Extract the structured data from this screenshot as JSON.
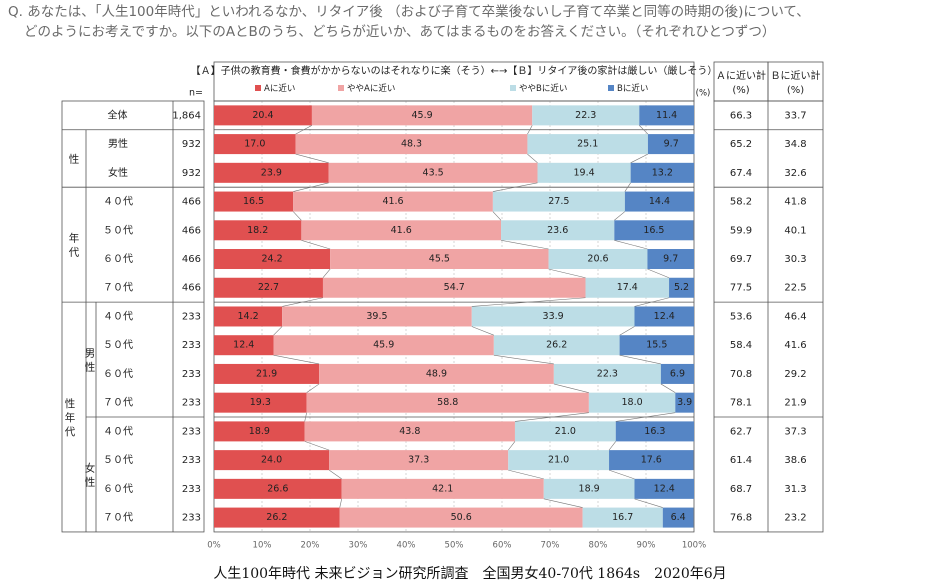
{
  "question": {
    "line1": "Q. あなたは、「人生100年時代」といわれるなか、リタイア後 （および子育て卒業後ないし子育て卒業と同等の時期の後)について、",
    "line2": "どのようにお考えですか。以下のAとBのうち、どちらが近いか、あてはまるものをお答えください。（それぞれひとつずつ）"
  },
  "footer": "人生100年時代 未来ビジョン研究所調査　全国男女40-70代 1864s　2020年6月",
  "colors": {
    "a": "#e05050",
    "somewhat_a": "#f0a4a4",
    "somewhat_b": "#bcdde6",
    "b": "#5585c5"
  },
  "chart_data": {
    "type": "bar",
    "orientation": "horizontal",
    "stacked": "percent",
    "title": "【Ａ】子供の教育費・食費がかからないのはそれなりに楽（そう）←→【Ｂ】リタイア後の家計は厳しい（厳しそう）",
    "n_header": "n=",
    "unit_label": "(%)",
    "series": [
      {
        "name": "Aに近い",
        "key": "a",
        "values": [
          20.4,
          17.0,
          23.9,
          16.5,
          18.2,
          24.2,
          22.7,
          14.2,
          12.4,
          21.9,
          19.3,
          18.9,
          24.0,
          26.6,
          26.2
        ]
      },
      {
        "name": "ややAに近い",
        "key": "somewhat_a",
        "values": [
          45.9,
          48.3,
          43.5,
          41.6,
          41.6,
          45.5,
          54.7,
          39.5,
          45.9,
          48.9,
          58.8,
          43.8,
          37.3,
          42.1,
          50.6
        ]
      },
      {
        "name": "ややBに近い",
        "key": "somewhat_b",
        "values": [
          22.3,
          25.1,
          19.4,
          27.5,
          23.6,
          20.6,
          17.4,
          33.9,
          26.2,
          22.3,
          18.0,
          21.0,
          21.0,
          18.9,
          16.7
        ]
      },
      {
        "name": "Bに近い",
        "key": "b",
        "values": [
          11.4,
          9.7,
          13.2,
          14.4,
          16.5,
          9.7,
          5.2,
          12.4,
          15.5,
          6.9,
          3.9,
          16.3,
          17.6,
          12.4,
          6.4
        ]
      }
    ],
    "rows": [
      {
        "label": "全体",
        "n": "1,864",
        "a_total": "66.3",
        "b_total": "33.7"
      },
      {
        "label": "男性",
        "n": "932",
        "a_total": "65.2",
        "b_total": "34.8"
      },
      {
        "label": "女性",
        "n": "932",
        "a_total": "67.4",
        "b_total": "32.6"
      },
      {
        "label": "４０代",
        "n": "466",
        "a_total": "58.2",
        "b_total": "41.8"
      },
      {
        "label": "５０代",
        "n": "466",
        "a_total": "59.9",
        "b_total": "40.1"
      },
      {
        "label": "６０代",
        "n": "466",
        "a_total": "69.7",
        "b_total": "30.3"
      },
      {
        "label": "７０代",
        "n": "466",
        "a_total": "77.5",
        "b_total": "22.5"
      },
      {
        "label": "４０代",
        "n": "233",
        "a_total": "53.6",
        "b_total": "46.4"
      },
      {
        "label": "５０代",
        "n": "233",
        "a_total": "58.4",
        "b_total": "41.6"
      },
      {
        "label": "６０代",
        "n": "233",
        "a_total": "70.8",
        "b_total": "29.2"
      },
      {
        "label": "７０代",
        "n": "233",
        "a_total": "78.1",
        "b_total": "21.9"
      },
      {
        "label": "４０代",
        "n": "233",
        "a_total": "62.7",
        "b_total": "37.3"
      },
      {
        "label": "５０代",
        "n": "233",
        "a_total": "61.4",
        "b_total": "38.6"
      },
      {
        "label": "６０代",
        "n": "233",
        "a_total": "68.7",
        "b_total": "31.3"
      },
      {
        "label": "７０代",
        "n": "233",
        "a_total": "76.8",
        "b_total": "23.2"
      }
    ],
    "groups": [
      {
        "label": "性"
      },
      {
        "label": "年代"
      },
      {
        "label": "性年代"
      }
    ],
    "subgroups": [
      {
        "label": "男性"
      },
      {
        "label": "女性"
      }
    ],
    "total_headers": {
      "a": [
        "Ａに近い計",
        "(%)"
      ],
      "b": [
        "Ｂに近い計",
        "(%)"
      ]
    },
    "xlim": [
      0,
      100
    ],
    "xticks": [
      "0%",
      "10%",
      "20%",
      "30%",
      "40%",
      "50%",
      "60%",
      "70%",
      "80%",
      "90%",
      "100%"
    ]
  }
}
